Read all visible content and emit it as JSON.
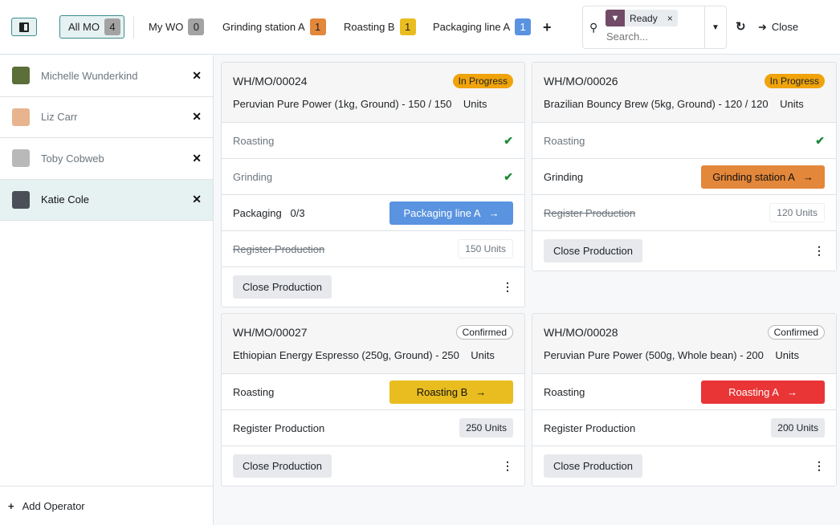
{
  "topbar": {
    "tabs": [
      {
        "label": "All MO",
        "count": "4",
        "count_bg": "#a3a3a3",
        "count_fg": "#222",
        "active": true
      },
      {
        "label": "My WO",
        "count": "0",
        "count_bg": "#a3a3a3",
        "count_fg": "#222"
      },
      {
        "label": "Grinding station A",
        "count": "1",
        "count_bg": "#e3873a",
        "count_fg": "#222"
      },
      {
        "label": "Roasting B",
        "count": "1",
        "count_bg": "#e9bd1f",
        "count_fg": "#222"
      },
      {
        "label": "Packaging line A",
        "count": "1",
        "count_bg": "#5a93e0",
        "count_fg": "#fff"
      }
    ],
    "add_icon": "plus-icon",
    "search": {
      "facet": "Ready",
      "placeholder": "Search..."
    },
    "close_label": "Close"
  },
  "sidebar": {
    "operators": [
      {
        "name": "Michelle Wunderkind",
        "avatar_color": "#5c6e3a"
      },
      {
        "name": "Liz Carr",
        "avatar_color": "#e8b48f"
      },
      {
        "name": "Toby Cobweb",
        "avatar_color": "#b9b9b9"
      },
      {
        "name": "Katie Cole",
        "avatar_color": "#4a4f58",
        "selected": true
      }
    ],
    "add_label": "Add Operator"
  },
  "cards": [
    {
      "ref": "WH/MO/00024",
      "status": "In Progress",
      "status_bg": "#f0a30a",
      "product": "Peruvian Pure Power (1kg, Ground) - 150 / 150    Units",
      "rows": [
        {
          "label": "Roasting",
          "style": "muted",
          "done": true
        },
        {
          "label": "Grinding",
          "style": "muted",
          "done": true
        },
        {
          "label": "Packaging   0/3",
          "button": "Packaging line A",
          "button_bg": "#5a93e0",
          "button_fg": "#fff"
        },
        {
          "label": "Register Production",
          "style": "strike",
          "qty": "150 Units",
          "qty_style": "light"
        }
      ],
      "footer": "Close Production"
    },
    {
      "ref": "WH/MO/00026",
      "status": "In Progress",
      "status_bg": "#f0a30a",
      "product": "Brazilian Bouncy Brew (5kg, Ground) - 120 / 120    Units",
      "rows": [
        {
          "label": "Roasting",
          "style": "muted",
          "done": true
        },
        {
          "label": "Grinding",
          "button": "Grinding station A",
          "button_bg": "#e3873a",
          "button_fg": "#111"
        },
        {
          "label": "Register Production",
          "style": "strike",
          "qty": "120 Units",
          "qty_style": "light"
        }
      ],
      "footer": "Close Production"
    },
    {
      "ref": "WH/MO/00027",
      "status": "Confirmed",
      "status_bg": "#ffffff",
      "product": "Ethiopian Energy Espresso (250g, Ground) - 250    Units",
      "rows": [
        {
          "label": "Roasting",
          "button": "Roasting B",
          "button_bg": "#e9bd1f",
          "button_fg": "#111"
        },
        {
          "label": "Register Production",
          "qty": "250 Units",
          "qty_style": "dark"
        }
      ],
      "footer": "Close Production"
    },
    {
      "ref": "WH/MO/00028",
      "status": "Confirmed",
      "status_bg": "#ffffff",
      "product": "Peruvian Pure Power (500g, Whole bean) - 200    Units",
      "rows": [
        {
          "label": "Roasting",
          "button": "Roasting A",
          "button_bg": "#e93535",
          "button_fg": "#fff"
        },
        {
          "label": "Register Production",
          "qty": "200 Units",
          "qty_style": "dark"
        }
      ],
      "footer": "Close Production"
    }
  ]
}
